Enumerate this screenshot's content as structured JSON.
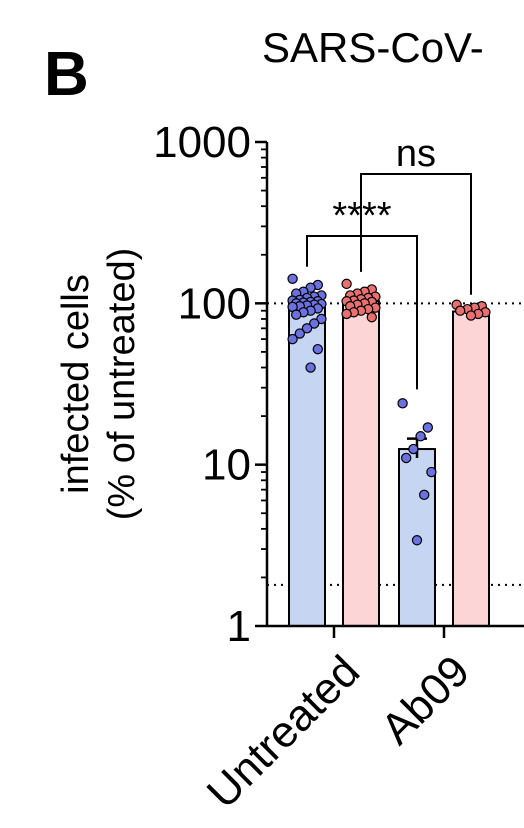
{
  "panel_label": "B",
  "chart_data": {
    "type": "bar",
    "scale": "log",
    "title": "SARS-CoV-",
    "ylabel_line1": "infected cells",
    "ylabel_line2": "(% of untreated)",
    "ylim": [
      1,
      1000
    ],
    "yticks": [
      1,
      10,
      100,
      1000
    ],
    "ytick_labels": [
      "1",
      "10",
      "100",
      "1000"
    ],
    "categories": [
      "Untreated",
      "Ab09"
    ],
    "reference_lines": [
      100,
      1.8
    ],
    "series": [
      {
        "name": "blue",
        "color": "#c5d5f2",
        "point_color": "#6b72e0",
        "values": [
          100,
          12.5
        ],
        "error": [
          null,
          [
            11,
            14.5
          ]
        ],
        "points": [
          [
            142,
            130,
            125,
            118,
            115,
            112,
            110,
            108,
            105,
            104,
            103,
            102,
            101,
            100,
            99,
            98,
            97,
            96,
            95,
            93,
            90,
            88,
            85,
            80,
            75,
            70,
            65,
            60,
            52,
            40
          ],
          [
            24,
            17,
            15,
            12.5,
            11,
            9,
            6.5,
            3.4
          ]
        ]
      },
      {
        "name": "red",
        "color": "#fcd6d6",
        "point_color": "#ea6f6f",
        "values": [
          103,
          89
        ],
        "error": [
          null,
          null
        ],
        "points": [
          [
            132,
            122,
            118,
            115,
            112,
            110,
            108,
            106,
            104,
            103,
            102,
            100,
            98,
            96,
            94,
            92,
            90,
            88,
            86,
            82
          ],
          [
            98,
            96,
            94,
            92,
            90,
            88,
            86,
            84
          ]
        ]
      }
    ],
    "annotations": [
      {
        "text": "****",
        "from": [
          "Untreated",
          "blue"
        ],
        "to": [
          "Ab09",
          "blue"
        ]
      },
      {
        "text": "ns",
        "from": [
          "Untreated",
          "red"
        ],
        "to": [
          "Ab09",
          "red"
        ]
      }
    ]
  }
}
